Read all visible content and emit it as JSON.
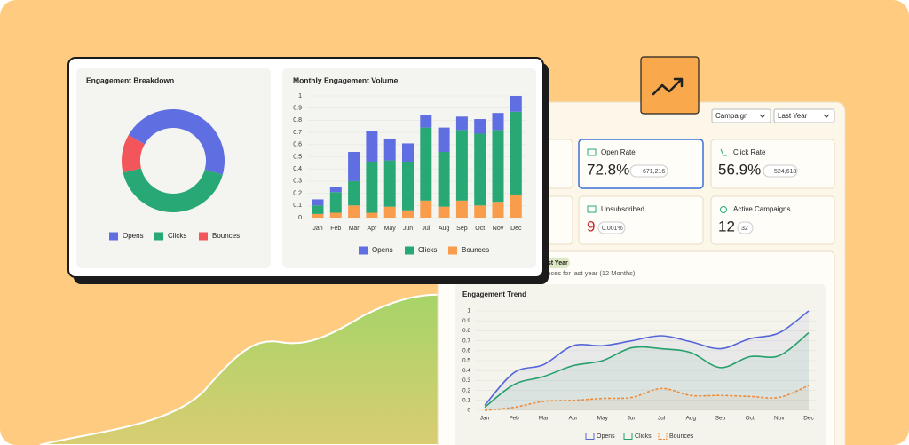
{
  "chart_data": [
    {
      "type": "donut",
      "title": "Engagement Breakdown",
      "categories": [
        "Opens",
        "Clicks",
        "Bounces"
      ],
      "values": [
        46,
        42,
        12
      ],
      "colors": [
        "#5f6ee0",
        "#28a874",
        "#f2555a"
      ]
    },
    {
      "type": "stacked-bar",
      "title": "Monthly Engagement Volume",
      "categories": [
        "Jan",
        "Feb",
        "Mar",
        "Apr",
        "May",
        "Jun",
        "Jul",
        "Aug",
        "Sep",
        "Oct",
        "Nov",
        "Dec"
      ],
      "series": [
        {
          "name": "Opens",
          "color": "#5f6ee0",
          "values": [
            0.05,
            0.04,
            0.24,
            0.25,
            0.18,
            0.15,
            0.1,
            0.2,
            0.11,
            0.12,
            0.14,
            0.13
          ]
        },
        {
          "name": "Clicks",
          "color": "#28a874",
          "values": [
            0.07,
            0.17,
            0.2,
            0.42,
            0.38,
            0.4,
            0.6,
            0.45,
            0.58,
            0.59,
            0.59,
            0.68
          ]
        },
        {
          "name": "Bounces",
          "color": "#f99c4c",
          "values": [
            0.03,
            0.04,
            0.1,
            0.04,
            0.09,
            0.06,
            0.14,
            0.09,
            0.14,
            0.1,
            0.13,
            0.19
          ]
        }
      ],
      "ylim": [
        0,
        1
      ],
      "yticks": [
        0,
        0.1,
        0.2,
        0.3,
        0.4,
        0.5,
        0.6,
        0.7,
        0.8,
        0.9,
        1
      ],
      "grid": true
    },
    {
      "type": "line",
      "title": "Engagement Trend",
      "categories": [
        "Jan",
        "Feb",
        "Mar",
        "Apr",
        "May",
        "Jun",
        "Jul",
        "Aug",
        "Sep",
        "Oct",
        "Nov",
        "Dec"
      ],
      "series": [
        {
          "name": "Opens",
          "color": "#5566d8",
          "values": [
            0.05,
            0.38,
            0.46,
            0.65,
            0.65,
            0.7,
            0.75,
            0.69,
            0.62,
            0.72,
            0.78,
            1.0
          ]
        },
        {
          "name": "Clicks",
          "color": "#25a06c",
          "values": [
            0.03,
            0.26,
            0.34,
            0.45,
            0.5,
            0.63,
            0.62,
            0.58,
            0.43,
            0.54,
            0.55,
            0.78
          ]
        },
        {
          "name": "Bounces",
          "color": "#f08a35",
          "dashed": true,
          "values": [
            0.0,
            0.03,
            0.09,
            0.1,
            0.12,
            0.13,
            0.22,
            0.15,
            0.15,
            0.14,
            0.13,
            0.25
          ]
        }
      ],
      "ylim": [
        0,
        1
      ],
      "yticks": [
        0,
        0.1,
        0.2,
        0.3,
        0.4,
        0.5,
        0.6,
        0.7,
        0.8,
        0.9,
        1
      ],
      "grid": true
    }
  ],
  "dashboard": {
    "filters": [
      "Campaign",
      "Last Year"
    ],
    "cards": [
      {
        "label": "Open Rate",
        "value": "72.8%",
        "badge": "671,216"
      },
      {
        "label": "Click Rate",
        "value": "56.9%",
        "badge": "524,618"
      },
      {
        "label": "Unsubscribed",
        "value": "9",
        "badge": "0.001%"
      },
      {
        "label": "Active Campaigns",
        "value": "12",
        "badge": "32"
      }
    ],
    "section_chip": "ast Year",
    "section_desc": "unces for last year (12 Months)."
  }
}
